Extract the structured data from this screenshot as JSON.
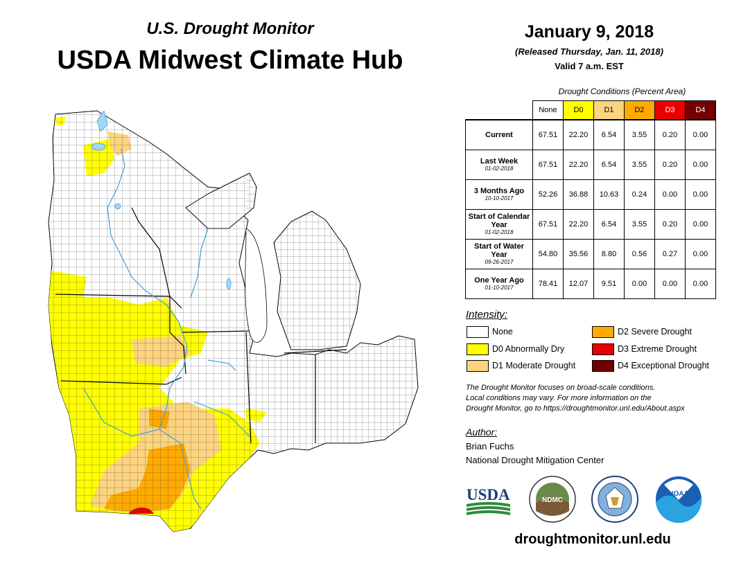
{
  "header": {
    "subtitle": "U.S. Drought Monitor",
    "title": "USDA Midwest Climate Hub"
  },
  "date": {
    "main": "January 9, 2018",
    "released": "(Released Thursday, Jan. 11, 2018)",
    "valid": "Valid 7 a.m. EST"
  },
  "table": {
    "caption": "Drought Conditions (Percent Area)",
    "columns": [
      {
        "label": "None",
        "color": "#ffffff"
      },
      {
        "label": "D0",
        "color": "#ffff00"
      },
      {
        "label": "D1",
        "color": "#fcd37f"
      },
      {
        "label": "D2",
        "color": "#ffaa00"
      },
      {
        "label": "D3",
        "color": "#e60000"
      },
      {
        "label": "D4",
        "color": "#730000"
      }
    ],
    "rows": [
      {
        "label": "Current",
        "date": "",
        "values": [
          "67.51",
          "22.20",
          "6.54",
          "3.55",
          "0.20",
          "0.00"
        ]
      },
      {
        "label": "Last Week",
        "date": "01-02-2018",
        "values": [
          "67.51",
          "22.20",
          "6.54",
          "3.55",
          "0.20",
          "0.00"
        ]
      },
      {
        "label": "3 Months Ago",
        "date": "10-10-2017",
        "values": [
          "52.26",
          "36.88",
          "10.63",
          "0.24",
          "0.00",
          "0.00"
        ]
      },
      {
        "label": "Start of Calendar Year",
        "date": "01-02-2018",
        "values": [
          "67.51",
          "22.20",
          "6.54",
          "3.55",
          "0.20",
          "0.00"
        ]
      },
      {
        "label": "Start of Water Year",
        "date": "09-26-2017",
        "values": [
          "54.80",
          "35.56",
          "8.80",
          "0.56",
          "0.27",
          "0.00"
        ]
      },
      {
        "label": "One Year Ago",
        "date": "01-10-2017",
        "values": [
          "78.41",
          "12.07",
          "9.51",
          "0.00",
          "0.00",
          "0.00"
        ]
      }
    ]
  },
  "intensity": {
    "title": "Intensity:",
    "items": [
      {
        "label": "None",
        "color": "#ffffff"
      },
      {
        "label": "D0 Abnormally Dry",
        "color": "#ffff00"
      },
      {
        "label": "D1 Moderate Drought",
        "color": "#fcd37f"
      },
      {
        "label": "D2 Severe Drought",
        "color": "#ffaa00"
      },
      {
        "label": "D3 Extreme Drought",
        "color": "#e60000"
      },
      {
        "label": "D4 Exceptional Drought",
        "color": "#730000"
      }
    ]
  },
  "note": {
    "line1": "The Drought Monitor focuses on broad-scale conditions.",
    "line2": "Local conditions may vary. For more information on the",
    "line3": "Drought Monitor, go to https://droughtmonitor.unl.edu/About.aspx"
  },
  "author": {
    "title": "Author:",
    "name": "Brian Fuchs",
    "org": "National Drought Mitigation Center"
  },
  "logos": {
    "usda": "USDA",
    "ndmc": "NDMC",
    "noaa": "NOAA"
  },
  "url": "droughtmonitor.unl.edu"
}
